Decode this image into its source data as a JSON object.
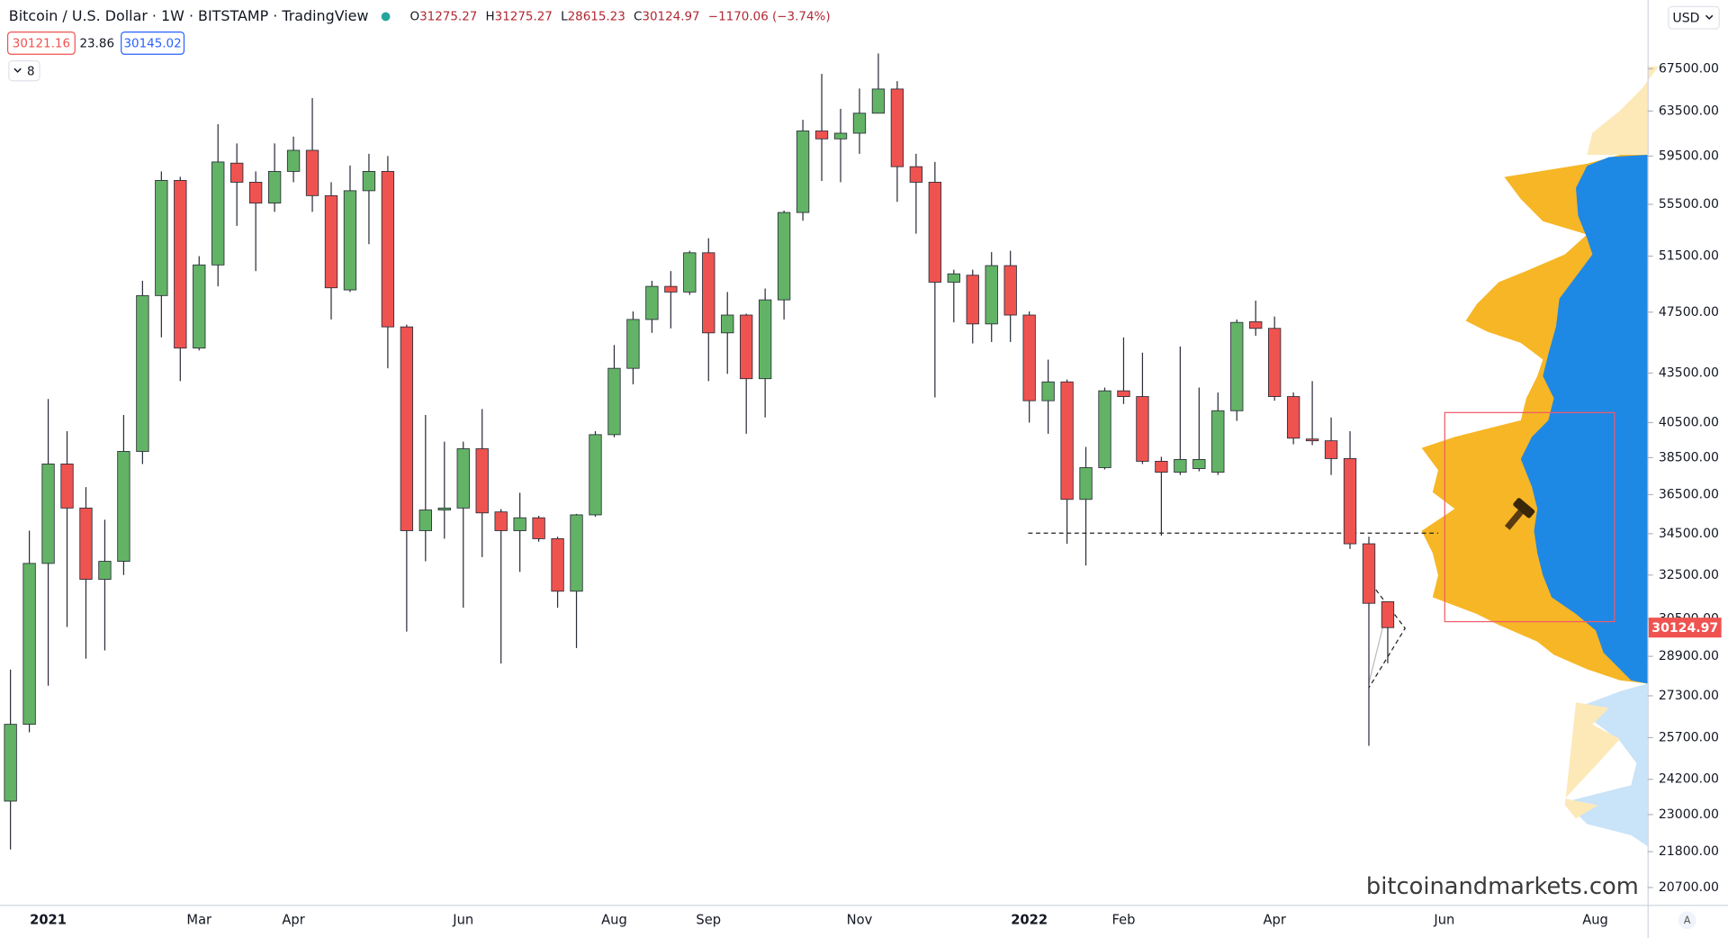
{
  "header": {
    "title": "Bitcoin / U.S. Dollar · 1W · BITSTAMP · TradingView",
    "ohlc_letters": [
      "O",
      "H",
      "L",
      "C"
    ],
    "change": "−1170.06 (−3.74%)",
    "bid": "30121.16",
    "spread": "23.86",
    "ask": "30145.02",
    "indicators_count": "8"
  },
  "currency": "USD",
  "watermark": "bitcoinandmarkets.com",
  "auto_button": "A",
  "chart_data": {
    "type": "candlestick",
    "log_scale": true,
    "grid": false,
    "up_color": "#63b366",
    "down_color": "#ef5350",
    "categories": [
      null,
      null,
      "2021",
      null,
      null,
      null,
      null,
      null,
      null,
      null,
      "Mar",
      null,
      null,
      null,
      null,
      "Apr",
      null,
      null,
      null,
      null,
      null,
      null,
      null,
      null,
      "Jun",
      null,
      null,
      null,
      null,
      null,
      null,
      null,
      "Aug",
      null,
      null,
      null,
      null,
      "Sep",
      null,
      null,
      null,
      null,
      null,
      null,
      null,
      "Nov",
      null,
      null,
      null,
      null,
      null,
      null,
      null,
      null,
      "2022",
      null,
      null,
      null,
      null,
      "Feb",
      null,
      null,
      null,
      null,
      null,
      null,
      null,
      "Apr",
      null,
      null,
      null,
      null,
      null,
      null,
      null,
      null,
      "Jun",
      null,
      null,
      null,
      null,
      null,
      null,
      null,
      "Aug",
      null,
      null
    ],
    "open": [
      23450,
      26200,
      33050,
      38150,
      35800,
      32300,
      33150,
      38850,
      48650,
      57450,
      45100,
      50850,
      58900,
      57300,
      55600,
      58200,
      60000,
      56200,
      49050,
      56600,
      58200,
      46500,
      34650,
      35700,
      35800,
      39000,
      35600,
      34650,
      35300,
      34250,
      31750,
      35450,
      39800,
      43800,
      47000,
      49300,
      48900,
      51750,
      46100,
      47300,
      43150,
      48350,
      54850,
      61700,
      61000,
      61500,
      63300,
      65550,
      58600,
      57300,
      49600,
      50100,
      46700,
      50800,
      47300,
      41800,
      42950,
      36250,
      37950,
      42400,
      42050,
      38300,
      37700,
      37900,
      37700,
      41200,
      46850,
      46400,
      42050,
      39550,
      39450,
      38450,
      34000,
      31275.27,
      null,
      null,
      null,
      null,
      null,
      null,
      null,
      null,
      null,
      null,
      null,
      null,
      null
    ],
    "high": [
      28350,
      34650,
      41900,
      40000,
      36900,
      35200,
      40950,
      49700,
      58200,
      57750,
      51500,
      62300,
      60600,
      58200,
      60600,
      61200,
      64700,
      57300,
      58700,
      59700,
      59500,
      46650,
      40950,
      39400,
      39400,
      41300,
      35750,
      36600,
      35400,
      34350,
      35500,
      40000,
      45300,
      47550,
      49700,
      50400,
      51900,
      52850,
      48900,
      47400,
      49150,
      55000,
      62700,
      67000,
      63700,
      65600,
      69000,
      66300,
      59700,
      59000,
      50500,
      50500,
      51800,
      51900,
      47550,
      44350,
      43100,
      39100,
      42600,
      45800,
      44800,
      38550,
      45200,
      42600,
      42300,
      47000,
      48300,
      47200,
      42300,
      43000,
      40800,
      40000,
      34350,
      31275.27,
      null,
      null,
      null,
      null,
      null,
      null,
      null,
      null,
      null,
      null,
      null,
      null,
      null
    ],
    "low": [
      21870,
      25900,
      27700,
      30150,
      28800,
      29150,
      32500,
      38150,
      45800,
      43000,
      44950,
      49300,
      53800,
      50400,
      54900,
      57300,
      54900,
      47000,
      48900,
      52400,
      43800,
      29950,
      33150,
      34250,
      31000,
      33350,
      28600,
      32650,
      34100,
      31000,
      29250,
      35350,
      39650,
      42800,
      46100,
      46400,
      48700,
      43000,
      43450,
      39850,
      40800,
      47000,
      54200,
      57400,
      57300,
      59700,
      63300,
      55700,
      53200,
      42000,
      46800,
      45400,
      45500,
      45500,
      40500,
      39850,
      34000,
      32950,
      37850,
      41600,
      38150,
      34400,
      37550,
      37750,
      37550,
      40600,
      45900,
      41800,
      39250,
      39200,
      37550,
      33750,
      25400,
      28615.23,
      null,
      null,
      null,
      null,
      null,
      null,
      null,
      null,
      null,
      null,
      null,
      null,
      null
    ],
    "close": [
      26200,
      33050,
      38150,
      35800,
      32300,
      33150,
      38850,
      48650,
      57450,
      45100,
      50850,
      59000,
      57300,
      55600,
      58200,
      60000,
      56200,
      49200,
      56600,
      58200,
      46500,
      34650,
      35700,
      35800,
      39000,
      35550,
      34650,
      35300,
      34250,
      31750,
      35450,
      39800,
      43800,
      47000,
      49300,
      48900,
      51750,
      46100,
      47300,
      43150,
      48350,
      54850,
      61700,
      61000,
      61500,
      63300,
      65550,
      58600,
      57300,
      49600,
      50200,
      46700,
      50800,
      47300,
      41800,
      42950,
      36250,
      37950,
      42400,
      42050,
      38300,
      37700,
      38400,
      38400,
      41200,
      46800,
      46400,
      42050,
      39600,
      39450,
      38450,
      34000,
      31200,
      30124.97,
      null,
      null,
      null,
      null,
      null,
      null,
      null,
      null,
      null,
      null,
      null,
      null,
      null
    ],
    "ylim": [
      20190,
      74540
    ],
    "yticks": [
      {
        "value": 67500,
        "label": "67500.00"
      },
      {
        "value": 63500,
        "label": "63500.00"
      },
      {
        "value": 59500,
        "label": "59500.00"
      },
      {
        "value": 55500,
        "label": "55500.00"
      },
      {
        "value": 51500,
        "label": "51500.00"
      },
      {
        "value": 47500,
        "label": "47500.00"
      },
      {
        "value": 43500,
        "label": "43500.00"
      },
      {
        "value": 40500,
        "label": "40500.00"
      },
      {
        "value": 38500,
        "label": "38500.00"
      },
      {
        "value": 36500,
        "label": "36500.00"
      },
      {
        "value": 34500,
        "label": "34500.00"
      },
      {
        "value": 32500,
        "label": "32500.00"
      },
      {
        "value": 30500,
        "label": "30500.00"
      },
      {
        "value": 28900,
        "label": "28900.00"
      },
      {
        "value": 27300,
        "label": "27300.00"
      },
      {
        "value": 25700,
        "label": "25700.00"
      },
      {
        "value": 24200,
        "label": "24200.00"
      },
      {
        "value": 23000,
        "label": "23000.00"
      },
      {
        "value": 21800,
        "label": "21800.00"
      },
      {
        "value": 20700,
        "label": "20700.00"
      }
    ]
  }
}
